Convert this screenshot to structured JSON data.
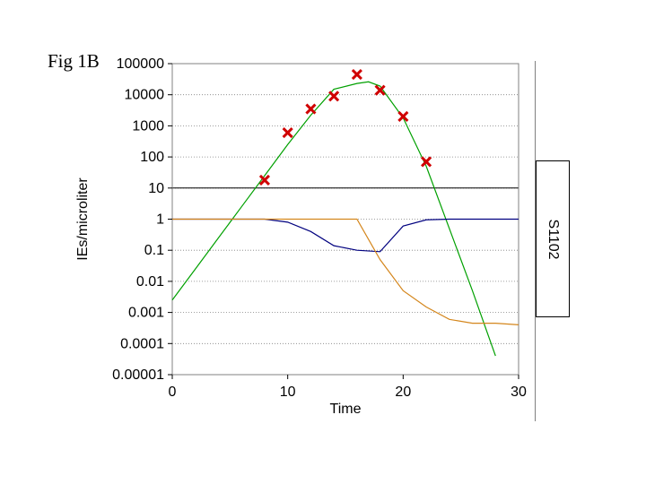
{
  "figure_label": "Fig 1B",
  "legend_label": "S1102",
  "chart_data": {
    "type": "line",
    "xlabel": "Time",
    "ylabel": "IEs/microliter",
    "xlim": [
      0,
      30
    ],
    "ylim": [
      1e-05,
      100000
    ],
    "y_scale": "log",
    "x_ticks": [
      0,
      10,
      20,
      30
    ],
    "y_ticks": [
      {
        "value": 100000,
        "label": "100000"
      },
      {
        "value": 10000,
        "label": "10000"
      },
      {
        "value": 1000,
        "label": "1000"
      },
      {
        "value": 100,
        "label": "100"
      },
      {
        "value": 10,
        "label": "10"
      },
      {
        "value": 1,
        "label": "1"
      },
      {
        "value": 0.1,
        "label": "0.1"
      },
      {
        "value": 0.01,
        "label": "0.01"
      },
      {
        "value": 0.001,
        "label": "0.001"
      },
      {
        "value": 0.0001,
        "label": "0.0001"
      },
      {
        "value": 1e-05,
        "label": "0.00001"
      }
    ],
    "grid": "horizontal dotted",
    "threshold_line": {
      "y": 10,
      "color": "#000000"
    },
    "series": [
      {
        "type": "line",
        "color": "#00a000",
        "x": [
          0,
          2,
          4,
          6,
          8,
          10,
          12,
          14,
          16,
          17,
          18,
          20,
          22,
          24,
          26,
          28
        ],
        "y": [
          0.0025,
          0.025,
          0.25,
          2.5,
          25,
          250,
          2200,
          15000,
          23000,
          26000,
          19000,
          1800,
          50,
          0.5,
          0.005,
          4e-05
        ]
      },
      {
        "type": "line",
        "color": "#00007f",
        "x": [
          0,
          8,
          10,
          12,
          14,
          16,
          18,
          20,
          22,
          24,
          26,
          28,
          30
        ],
        "y": [
          1,
          1,
          0.8,
          0.4,
          0.14,
          0.1,
          0.09,
          0.6,
          0.95,
          1,
          1,
          1,
          1
        ]
      },
      {
        "type": "line",
        "color": "#d4861c",
        "x": [
          0,
          4,
          8,
          12,
          16,
          18,
          20,
          22,
          24,
          26,
          28,
          30
        ],
        "y": [
          1,
          1,
          1,
          1,
          1,
          0.05,
          0.005,
          0.0015,
          0.0006,
          0.00045,
          0.00045,
          0.0004
        ]
      },
      {
        "type": "scatter",
        "color": "#d00000",
        "marker": "x",
        "x": [
          8,
          10,
          12,
          14,
          16,
          18,
          20,
          22
        ],
        "y": [
          18,
          600,
          3500,
          9000,
          45000,
          14000,
          2000,
          70
        ]
      }
    ]
  }
}
